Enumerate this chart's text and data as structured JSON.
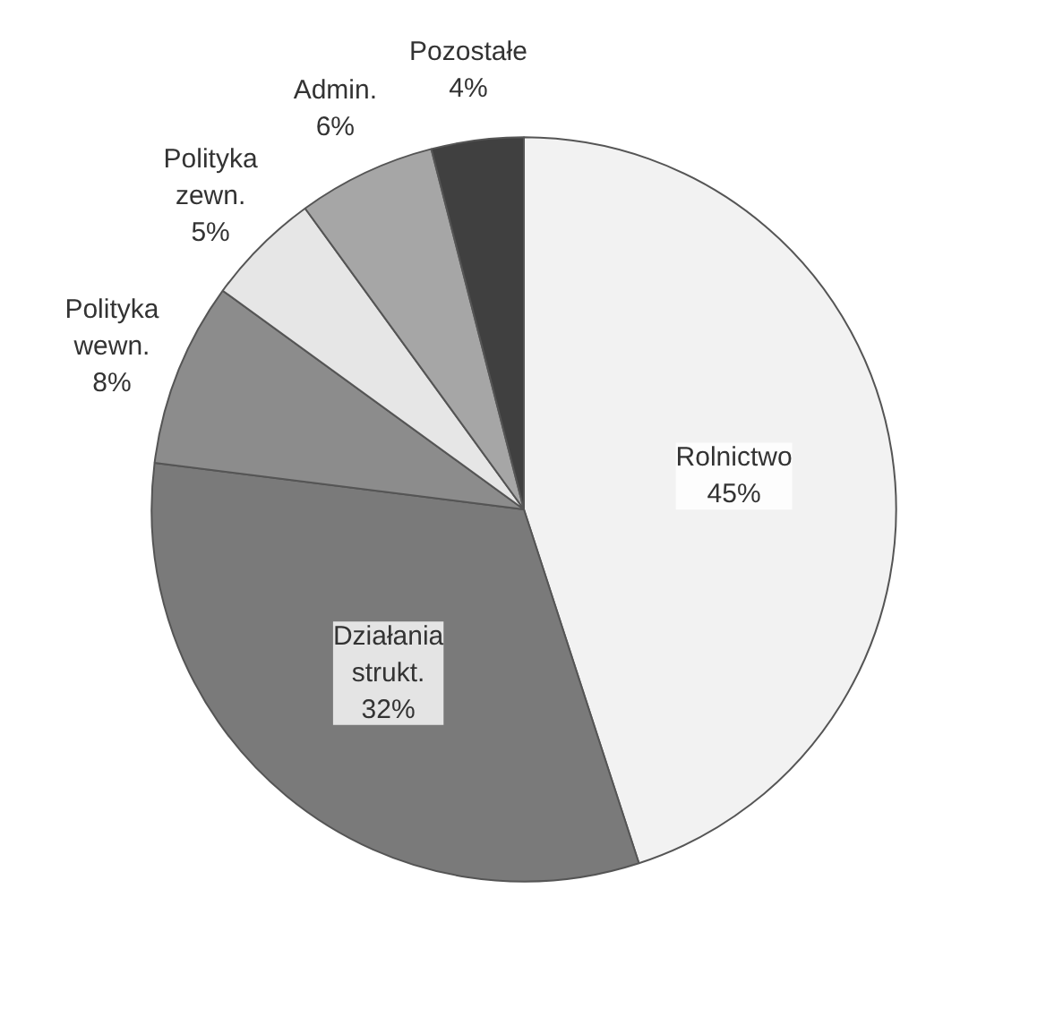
{
  "chart_data": {
    "type": "pie",
    "categories": [
      "Rolnictwo",
      "Działania strukt.",
      "Polityka wewn.",
      "Polityka zewn.",
      "Admin.",
      "Pozostałe"
    ],
    "values": [
      45,
      32,
      8,
      5,
      6,
      4
    ],
    "colors": [
      "#f2f2f2",
      "#7a7a7a",
      "#8c8c8c",
      "#e6e6e6",
      "#a6a6a6",
      "#404040"
    ],
    "value_labels": [
      "45%",
      "32%",
      "8%",
      "5%",
      "6%",
      "4%"
    ]
  }
}
